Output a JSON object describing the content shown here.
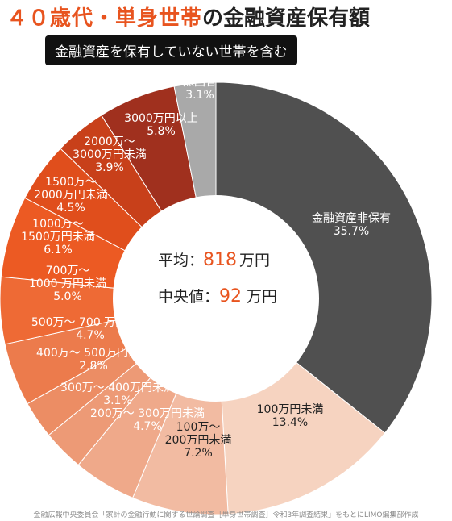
{
  "title": {
    "accent": "４０歳代・単身世帯",
    "main": "の金融資産保有額"
  },
  "subtitle": "金融資産を保有していない世帯を含む",
  "center": {
    "avg_label": "平均：",
    "avg_value": "818",
    "avg_unit": "万円",
    "median_label": "中央値：",
    "median_value": "92",
    "median_unit": "万円"
  },
  "source": "金融広報中央委員会「家計の金融行動に関する世論調査［単身世帯調査］令和3年調査結果」をもとにLIMO編集部作成",
  "chart_data": {
    "type": "pie",
    "start": "top, clockwise",
    "categories": [
      "金融資産非保有",
      "100万円未満",
      "100万～200万円未満",
      "200万～300万円未満",
      "300万～400万円未満",
      "400万～500万円未満",
      "500万～700万円未満",
      "700万～1000万円未満",
      "1000万～1500万円未満",
      "1500万～2000万円未満",
      "2000万～3000万円未満",
      "3000万円以上",
      "無回答"
    ],
    "values": [
      35.7,
      13.4,
      7.2,
      4.7,
      3.1,
      2.8,
      4.7,
      5.0,
      6.1,
      4.5,
      3.9,
      5.8,
      3.1
    ],
    "labels": [
      [
        "金融資産非保有",
        "35.7%"
      ],
      [
        "100万円未満",
        "13.4%"
      ],
      [
        "100万～",
        "200万円未満",
        "7.2%"
      ],
      [
        "200万～ 300万円未満",
        "4.7%"
      ],
      [
        "300万～ 400万円未満",
        "3.1%"
      ],
      [
        "400万～ 500万円未満",
        "2.8%"
      ],
      [
        "500万～ 700 万円未満",
        "4.7%"
      ],
      [
        "700万～",
        "1000 万円未満",
        "5.0%"
      ],
      [
        "1000万～",
        "1500万円未満",
        "6.1%"
      ],
      [
        "1500万～",
        "2000万円未満",
        "4.5%"
      ],
      [
        "2000万～",
        "3000万円未満",
        "3.9%"
      ],
      [
        "3000万円以上",
        "5.8%"
      ],
      [
        "無回答",
        "3.1%"
      ]
    ],
    "colors": [
      "#505050",
      "#f6d3c0",
      "#f2bba2",
      "#efa98a",
      "#ed9a76",
      "#ec8d64",
      "#ec7b4c",
      "#ee6a35",
      "#ec5a23",
      "#e04e1c",
      "#c8401a",
      "#a0301e",
      "#a9a9a9"
    ],
    "dark_label_slices": [
      1,
      2
    ]
  }
}
